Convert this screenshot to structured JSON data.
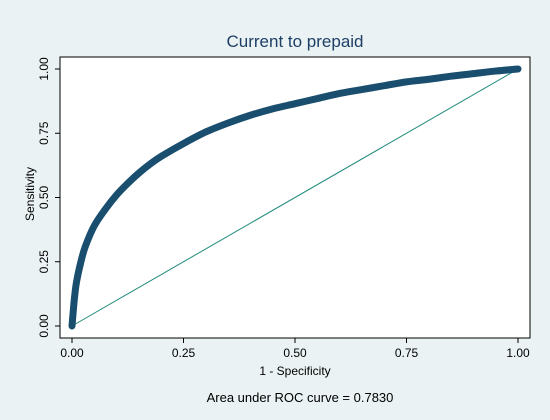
{
  "chart_data": {
    "type": "line",
    "title": "Current to prepaid",
    "xlabel": "1 - Specificity",
    "ylabel": "Sensitivity",
    "xlim": [
      0,
      1
    ],
    "ylim": [
      0,
      1
    ],
    "x_ticks": [
      "0.00",
      "0.25",
      "0.50",
      "0.75",
      "1.00"
    ],
    "y_ticks": [
      "0.00",
      "0.25",
      "0.50",
      "0.75",
      "1.00"
    ],
    "note": "Area under ROC curve = 0.7830",
    "grid": false,
    "legend": "none",
    "series": [
      {
        "x": [
          0,
          0.005,
          0.01,
          0.02,
          0.03,
          0.05,
          0.075,
          0.1,
          0.125,
          0.15,
          0.175,
          0.2,
          0.25,
          0.3,
          0.35,
          0.4,
          0.45,
          0.5,
          0.55,
          0.6,
          0.65,
          0.7,
          0.75,
          0.8,
          0.85,
          0.9,
          0.95,
          1.0
        ],
        "y": [
          0,
          0.1,
          0.17,
          0.25,
          0.31,
          0.39,
          0.455,
          0.51,
          0.555,
          0.595,
          0.63,
          0.66,
          0.71,
          0.755,
          0.79,
          0.82,
          0.845,
          0.865,
          0.885,
          0.905,
          0.92,
          0.935,
          0.95,
          0.96,
          0.972,
          0.982,
          0.992,
          1.0
        ]
      },
      {
        "x": [
          0,
          1
        ],
        "y": [
          0,
          1
        ]
      }
    ],
    "colors": {
      "background": "#eaf2f3",
      "plot_area": "#ffffff",
      "roc_curve": "#1a4e6e",
      "reference_line": "#1f8a7a",
      "title": "#1e3f66"
    }
  }
}
